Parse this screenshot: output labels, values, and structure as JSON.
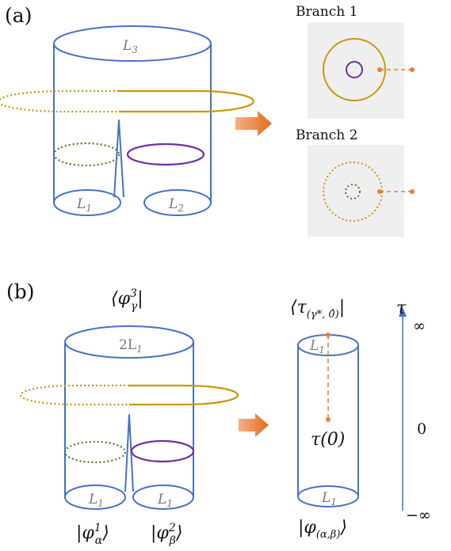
{
  "panel_a": {
    "label": "(a)",
    "top_label": "L",
    "top_sub": "3",
    "bottom_left_label": "L",
    "bottom_left_sub": "1",
    "bottom_right_label": "L",
    "bottom_right_sub": "2",
    "branch1": "Branch 1",
    "branch2": "Branch 2"
  },
  "panel_b": {
    "label": "(b)",
    "top_state": "⟨φ",
    "top_state_sup": "3",
    "top_state_sub": "γ",
    "top_state_end": "|",
    "top_label": "2L",
    "top_label_sub": "1",
    "bottom_left_label": "L",
    "bottom_left_sub": "1",
    "bottom_right_label": "L",
    "bottom_right_sub": "1",
    "bottom_left_state": "|φ",
    "bottom_left_sup": "1",
    "bottom_left_sub_greek": "α",
    "bottom_left_end": "⟩",
    "bottom_right_state": "|φ",
    "bottom_right_sup": "2",
    "bottom_right_sub_greek": "β",
    "bottom_right_end": "⟩",
    "cyl_top_state": "⟨τ",
    "cyl_top_state_sub": "(γ*, 0̂)",
    "cyl_top_state_end": "|",
    "cyl_top_label": "L",
    "cyl_top_label_sub": "1",
    "cyl_bottom_label": "L",
    "cyl_bottom_label_sub": "1",
    "insertion": "τ(0)",
    "cyl_bottom_state": "|φ",
    "cyl_bottom_state_sub": "(α,β)",
    "cyl_bottom_state_end": "⟩",
    "axis_symbol": "τ",
    "axis_top": "∞",
    "axis_mid": "0",
    "axis_bottom": "−∞"
  },
  "colors": {
    "outline": "#4472c4",
    "gold": "#c9960c",
    "purple": "#7030a0",
    "green": "#4e7a2c",
    "orange": "#ed7d31",
    "box": "#efefef"
  }
}
